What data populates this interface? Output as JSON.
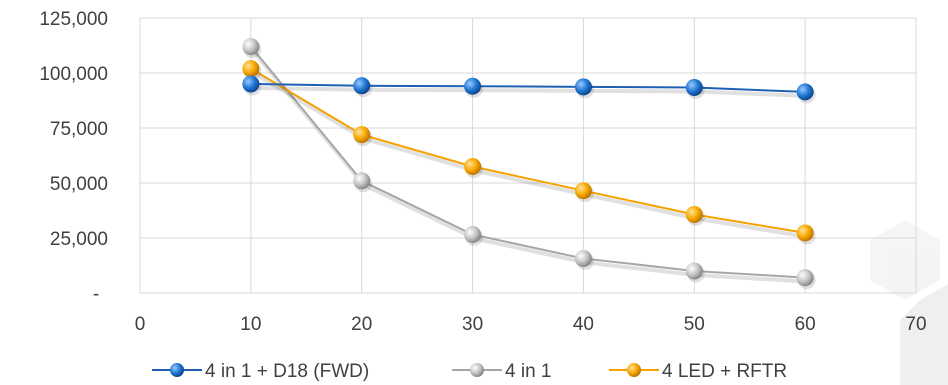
{
  "chart_data": {
    "type": "line",
    "title": "",
    "xlabel": "",
    "ylabel": "",
    "xlim": [
      0,
      70
    ],
    "ylim": [
      0,
      125000
    ],
    "x_ticks": [
      0,
      10,
      20,
      30,
      40,
      50,
      60,
      70
    ],
    "x_tick_labels": [
      "0",
      "10",
      "20",
      "30",
      "40",
      "50",
      "60",
      "70"
    ],
    "y_ticks": [
      0,
      25000,
      50000,
      75000,
      100000,
      125000
    ],
    "y_tick_labels": [
      "-",
      "25,000",
      "50,000",
      "75,000",
      "100,000",
      "125,000"
    ],
    "grid": true,
    "legend_position": "bottom",
    "series": [
      {
        "name": "4 in 1 + D18 (FWD)",
        "color": "#1f5fb4",
        "marker_color": "#1f77d4",
        "x": [
          10,
          20,
          30,
          40,
          50,
          60
        ],
        "y": [
          95000,
          94200,
          94000,
          93700,
          93400,
          91400
        ]
      },
      {
        "name": "4 in 1",
        "color": "#a6a6a6",
        "marker_color": "#bfbfbf",
        "x": [
          10,
          20,
          30,
          40,
          50,
          60
        ],
        "y": [
          112000,
          51000,
          26600,
          15700,
          10000,
          7000
        ]
      },
      {
        "name": "4 LED + RFTR",
        "color": "#f5a100",
        "marker_color": "#f7a800",
        "x": [
          10,
          20,
          30,
          40,
          50,
          60
        ],
        "y": [
          102000,
          72000,
          57500,
          46500,
          35700,
          27300
        ]
      }
    ]
  }
}
